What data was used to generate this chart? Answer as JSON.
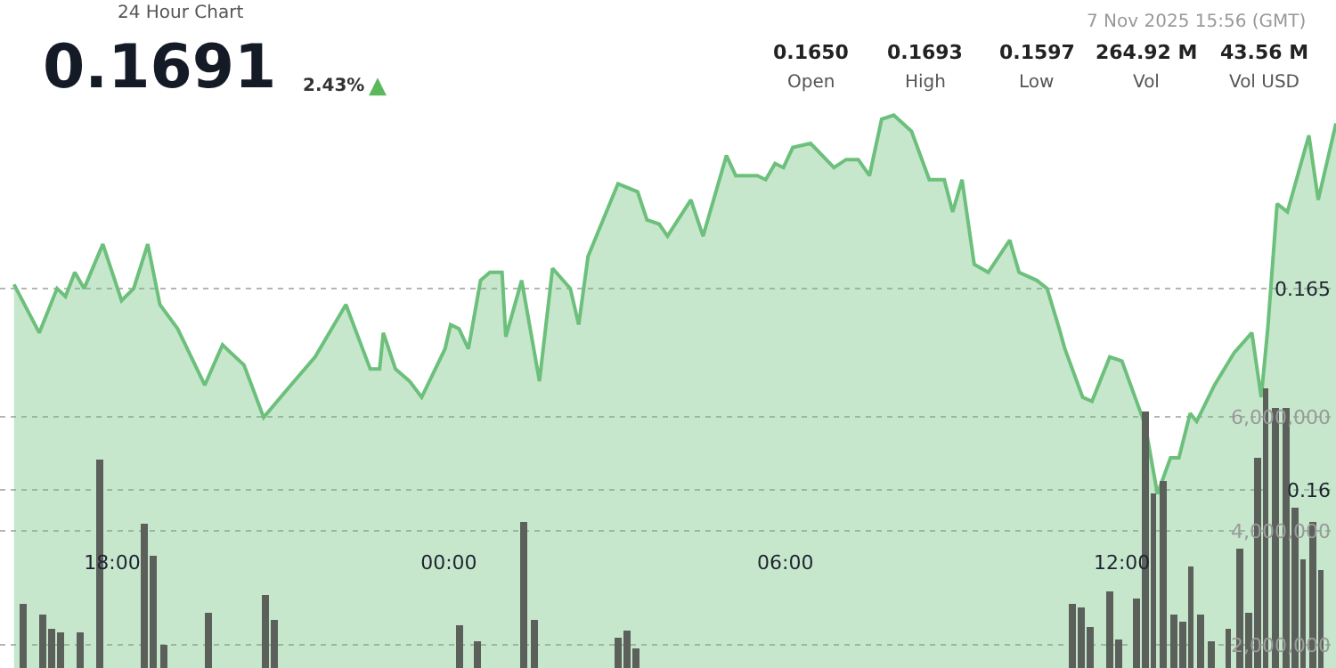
{
  "chart_data": {
    "type": "area",
    "title": "24 Hour Chart",
    "annotations": [
      "0.1691",
      "2.43%",
      "▲",
      "7 Nov 2025 15:56 (GMT)",
      "0.1650",
      "Open",
      "0.1693",
      "High",
      "0.1597",
      "Low",
      "264.92 M",
      "Vol",
      "43.56 M",
      "Vol USD"
    ],
    "series": [
      {
        "color": "#6cc07c",
        "x": [
          "2025-11-06T16:15",
          "2025-11-06T16:42",
          "2025-11-06T17:01",
          "2025-11-06T17:10",
          "2025-11-06T17:20",
          "2025-11-06T17:30",
          "2025-11-06T17:50",
          "2025-11-06T18:10",
          "2025-11-06T18:23",
          "2025-11-06T18:38",
          "2025-11-06T18:51",
          "2025-11-06T19:10",
          "2025-11-06T19:39",
          "2025-11-06T19:58",
          "2025-11-06T20:21",
          "2025-11-06T20:42",
          "2025-11-06T21:11",
          "2025-11-06T21:37",
          "2025-11-06T22:10",
          "2025-11-06T22:36",
          "2025-11-06T22:46",
          "2025-11-06T22:50",
          "2025-11-06T23:03",
          "2025-11-06T23:18",
          "2025-11-06T23:31",
          "2025-11-06T23:56",
          "2025-11-07T00:02",
          "2025-11-07T00:11",
          "2025-11-07T00:21",
          "2025-11-07T00:34",
          "2025-11-07T00:44",
          "2025-11-07T00:57",
          "2025-11-07T01:01",
          "2025-11-07T01:18",
          "2025-11-07T01:37",
          "2025-11-07T01:51",
          "2025-11-07T02:10",
          "2025-11-07T02:19",
          "2025-11-07T02:29",
          "2025-11-07T03:01",
          "2025-11-07T03:22",
          "2025-11-07T03:32",
          "2025-11-07T03:45",
          "2025-11-07T03:54",
          "2025-11-07T04:19",
          "2025-11-07T04:32",
          "2025-11-07T04:57",
          "2025-11-07T05:07",
          "2025-11-07T05:30",
          "2025-11-07T05:39",
          "2025-11-07T05:49",
          "2025-11-07T05:58",
          "2025-11-07T06:08",
          "2025-11-07T06:27",
          "2025-11-07T06:52",
          "2025-11-07T07:05",
          "2025-11-07T07:18",
          "2025-11-07T07:30",
          "2025-11-07T07:43",
          "2025-11-07T07:56",
          "2025-11-07T08:15",
          "2025-11-07T08:34",
          "2025-11-07T08:50",
          "2025-11-07T08:59",
          "2025-11-07T09:09",
          "2025-11-07T09:22",
          "2025-11-07T09:37",
          "2025-11-07T10:00",
          "2025-11-07T10:10",
          "2025-11-07T10:29",
          "2025-11-07T10:40",
          "2025-11-07T10:53",
          "2025-11-07T10:59",
          "2025-11-07T11:18",
          "2025-11-07T11:28",
          "2025-11-07T11:47",
          "2025-11-07T12:00",
          "2025-11-07T12:25",
          "2025-11-07T12:38",
          "2025-11-07T12:52",
          "2025-11-07T13:01",
          "2025-11-07T13:13",
          "2025-11-07T13:20",
          "2025-11-07T13:39",
          "2025-11-07T14:00",
          "2025-11-07T14:19",
          "2025-11-07T14:29",
          "2025-11-07T14:36",
          "2025-11-07T14:46",
          "2025-11-07T14:57",
          "2025-11-07T15:20",
          "2025-11-07T15:30",
          "2025-11-07T15:49"
        ],
        "values": [
          0.1651,
          0.1639,
          0.165,
          0.1648,
          0.1654,
          0.165,
          0.1661,
          0.1647,
          0.165,
          0.1661,
          0.1646,
          0.164,
          0.1626,
          0.1636,
          0.1631,
          0.1618,
          0.1626,
          0.1633,
          0.1646,
          0.163,
          0.163,
          0.1639,
          0.163,
          0.1627,
          0.1623,
          0.1635,
          0.1641,
          0.164,
          0.1635,
          0.1652,
          0.1654,
          0.1654,
          0.1638,
          0.1652,
          0.1627,
          0.1655,
          0.165,
          0.1641,
          0.1658,
          0.1676,
          0.1674,
          0.1667,
          0.1666,
          0.1663,
          0.1672,
          0.1663,
          0.1683,
          0.1678,
          0.1678,
          0.1677,
          0.1681,
          0.168,
          0.1685,
          0.1686,
          0.168,
          0.1682,
          0.1682,
          0.1678,
          0.1692,
          0.1693,
          0.1689,
          0.1677,
          0.1677,
          0.1669,
          0.1677,
          0.1656,
          0.1654,
          0.1662,
          0.1654,
          0.1652,
          0.165,
          0.164,
          0.1635,
          0.1623,
          0.1622,
          0.1633,
          0.1632,
          0.1616,
          0.1599,
          0.1608,
          0.1608,
          0.1619,
          0.1617,
          0.1626,
          0.1634,
          0.1639,
          0.1623,
          0.164,
          0.1671,
          0.1669,
          0.1688,
          0.1672,
          0.1691
        ]
      },
      {
        "type": "bar",
        "axis": "y2",
        "color": "#5b605b",
        "x": [
          "2025-11-06T16:25",
          "2025-11-06T16:46",
          "2025-11-06T16:55",
          "2025-11-06T17:05",
          "2025-11-06T17:26",
          "2025-11-06T17:47",
          "2025-11-06T18:34",
          "2025-11-06T18:44",
          "2025-11-06T18:55",
          "2025-11-06T19:43",
          "2025-11-06T20:44",
          "2025-11-06T20:53",
          "2025-11-07T00:11",
          "2025-11-07T00:31",
          "2025-11-07T01:20",
          "2025-11-07T01:32",
          "2025-11-07T03:01",
          "2025-11-07T03:11",
          "2025-11-07T03:20",
          "2025-11-07T11:07",
          "2025-11-07T11:16",
          "2025-11-07T11:26",
          "2025-11-07T11:47",
          "2025-11-07T11:56",
          "2025-11-07T12:15",
          "2025-11-07T12:25",
          "2025-11-07T12:34",
          "2025-11-07T12:44",
          "2025-11-07T12:55",
          "2025-11-07T13:05",
          "2025-11-07T13:14",
          "2025-11-07T13:24",
          "2025-11-07T13:35",
          "2025-11-07T13:54",
          "2025-11-07T14:06",
          "2025-11-07T14:15",
          "2025-11-07T14:25",
          "2025-11-07T14:34",
          "2025-11-07T14:44",
          "2025-11-07T14:55",
          "2025-11-07T15:05",
          "2025-11-07T15:14",
          "2025-11-07T15:24",
          "2025-11-07T15:33"
        ],
        "values": [
          2720000,
          2530000,
          2280000,
          2220000,
          2220000,
          5250000,
          4130000,
          3560000,
          2000000,
          2560000,
          2880000,
          2440000,
          2340000,
          2060000,
          4160000,
          2440000,
          2130000,
          2250000,
          1940000,
          2720000,
          2660000,
          2310000,
          2940000,
          2090000,
          2810000,
          6090000,
          4660000,
          4880000,
          2530000,
          2410000,
          3380000,
          2530000,
          2060000,
          2280000,
          3690000,
          2560000,
          5280000,
          6500000,
          6160000,
          6160000,
          4410000,
          3500000,
          4160000,
          3310000
        ]
      }
    ],
    "xlim": [
      "2025-11-06T16:00",
      "2025-11-07T15:49"
    ],
    "xticks": [
      {
        "value": "2025-11-06T18:00",
        "label": "18:00"
      },
      {
        "value": "2025-11-07T00:00",
        "label": "00:00"
      },
      {
        "value": "2025-11-07T06:00",
        "label": "06:00"
      },
      {
        "value": "2025-11-07T12:00",
        "label": "12:00"
      }
    ],
    "ylim": [
      0.15558,
      0.17216
    ],
    "yticks": [
      0.16,
      0.165
    ],
    "y2lim": [
      1600000,
      13320000
    ],
    "y2ticks": [
      {
        "value": 2000000,
        "label": "2,000,000"
      },
      {
        "value": 4000000,
        "label": "4,000,000"
      },
      {
        "value": 6000000,
        "label": "6,000,000"
      }
    ],
    "grid": "y"
  }
}
